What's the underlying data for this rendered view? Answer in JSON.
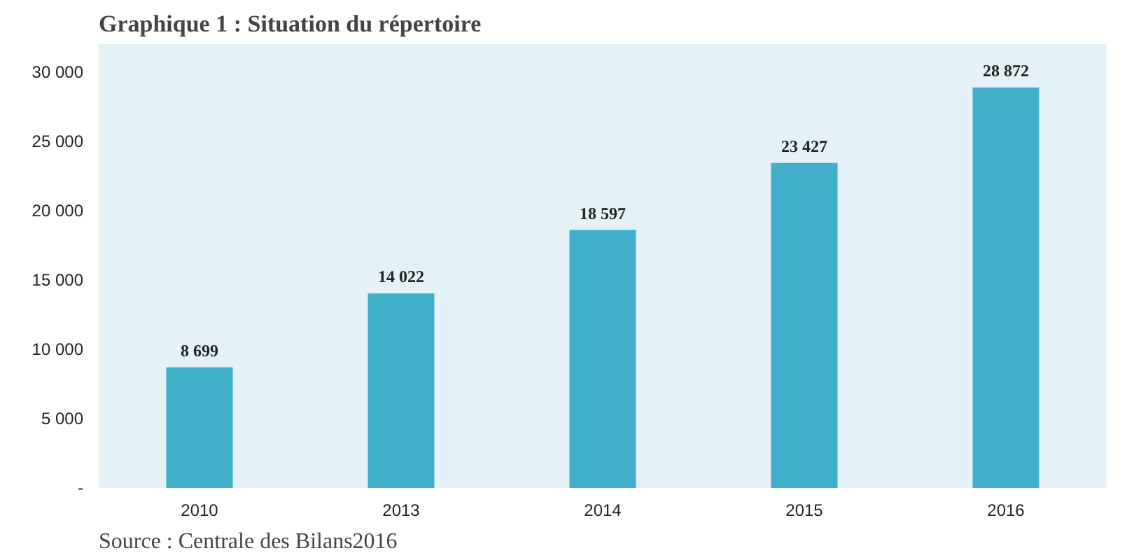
{
  "chart_data": {
    "type": "bar",
    "title": "Graphique 1 : Situation du répertoire",
    "categories": [
      "2010",
      "2013",
      "2014",
      "2015",
      "2016"
    ],
    "values": [
      8699,
      14022,
      18597,
      23427,
      28872
    ],
    "color": "#41afc9",
    "value_labels": [
      "8 699",
      "14 022",
      "18 597",
      "23 427",
      "28 872"
    ],
    "ylim": [
      0,
      32000
    ],
    "yticks": [
      {
        "value": 0,
        "label": "-"
      },
      {
        "value": 5000,
        "label": "5 000"
      },
      {
        "value": 10000,
        "label": "10 000"
      },
      {
        "value": 15000,
        "label": "15 000"
      },
      {
        "value": 20000,
        "label": "20 000"
      },
      {
        "value": 25000,
        "label": "25 000"
      },
      {
        "value": 30000,
        "label": "30 000"
      }
    ],
    "grid": false,
    "annotations": [
      "Source : Centrale des Bilans2016"
    ]
  }
}
